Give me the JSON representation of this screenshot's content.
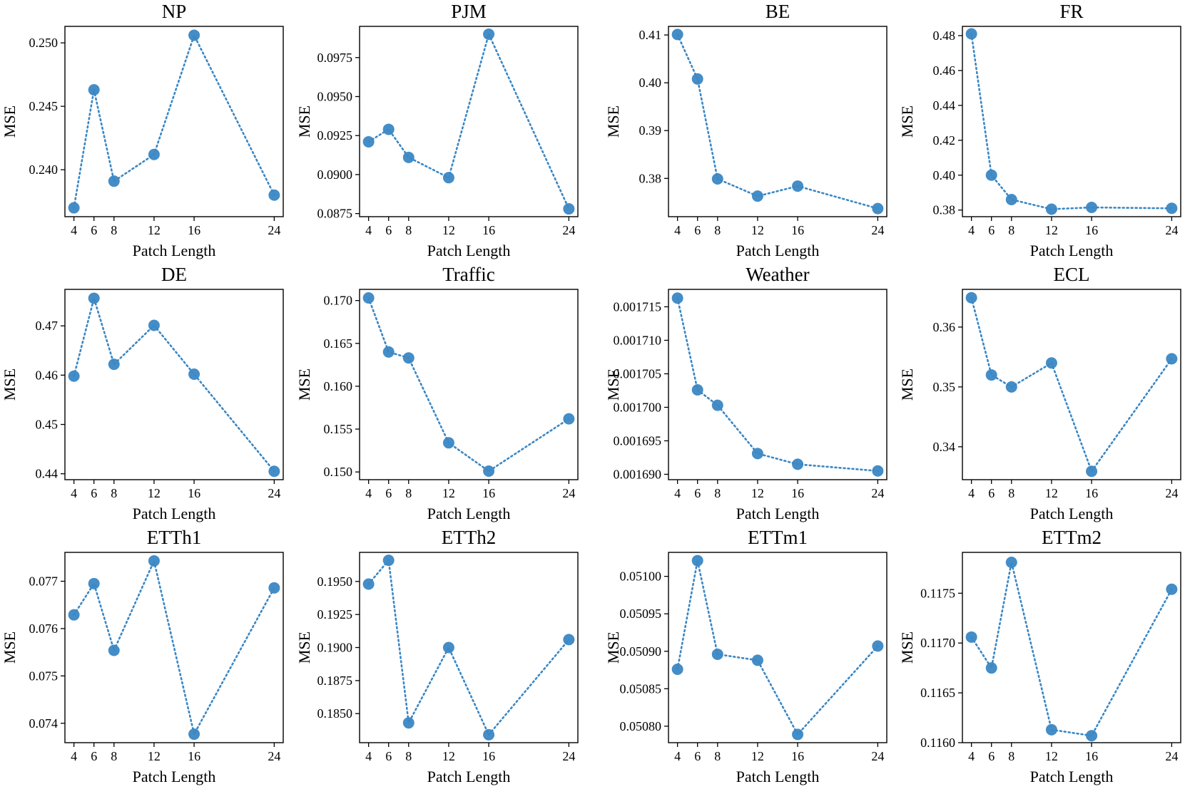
{
  "figure": {
    "marker_color": "#3a87c4",
    "line_style": "dotted"
  },
  "chart_data": [
    {
      "type": "scatter",
      "title": "NP",
      "xlabel": "Patch Length",
      "ylabel": "MSE",
      "x": [
        4,
        6,
        8,
        12,
        16,
        24
      ],
      "y": [
        0.237,
        0.2463,
        0.2391,
        0.2412,
        0.2506,
        0.238
      ],
      "xticks": [
        "4",
        "6",
        "8",
        "12",
        "16",
        "24"
      ],
      "yticks": [
        "0.240",
        "0.245",
        "0.250"
      ],
      "ylim": [
        0.2363,
        0.2513
      ]
    },
    {
      "type": "scatter",
      "title": "PJM",
      "xlabel": "Patch Length",
      "ylabel": "MSE",
      "x": [
        4,
        6,
        8,
        12,
        16,
        24
      ],
      "y": [
        0.0921,
        0.0929,
        0.0911,
        0.0898,
        0.099,
        0.0878
      ],
      "xticks": [
        "4",
        "6",
        "8",
        "12",
        "16",
        "24"
      ],
      "yticks": [
        "0.0875",
        "0.0900",
        "0.0925",
        "0.0950",
        "0.0975"
      ],
      "ylim": [
        0.0873,
        0.0995
      ]
    },
    {
      "type": "scatter",
      "title": "BE",
      "xlabel": "Patch Length",
      "ylabel": "MSE",
      "x": [
        4,
        6,
        8,
        12,
        16,
        24
      ],
      "y": [
        0.4101,
        0.4008,
        0.3799,
        0.3763,
        0.3784,
        0.3737
      ],
      "xticks": [
        "4",
        "6",
        "8",
        "12",
        "16",
        "24"
      ],
      "yticks": [
        "0.38",
        "0.39",
        "0.40",
        "0.41"
      ],
      "ylim": [
        0.372,
        0.4118
      ]
    },
    {
      "type": "scatter",
      "title": "FR",
      "xlabel": "Patch Length",
      "ylabel": "MSE",
      "x": [
        4,
        6,
        8,
        12,
        16,
        24
      ],
      "y": [
        0.481,
        0.4,
        0.386,
        0.3805,
        0.3815,
        0.381
      ],
      "xticks": [
        "4",
        "6",
        "8",
        "12",
        "16",
        "24"
      ],
      "yticks": [
        "0.38",
        "0.40",
        "0.42",
        "0.44",
        "0.46",
        "0.48"
      ],
      "ylim": [
        0.3762,
        0.4853
      ]
    },
    {
      "type": "scatter",
      "title": "DE",
      "xlabel": "Patch Length",
      "ylabel": "MSE",
      "x": [
        4,
        6,
        8,
        12,
        16,
        24
      ],
      "y": [
        0.4598,
        0.4756,
        0.4622,
        0.4701,
        0.4602,
        0.4405
      ],
      "xticks": [
        "4",
        "6",
        "8",
        "12",
        "16",
        "24"
      ],
      "yticks": [
        "0.44",
        "0.45",
        "0.46",
        "0.47"
      ],
      "ylim": [
        0.4388,
        0.4774
      ]
    },
    {
      "type": "scatter",
      "title": "Traffic",
      "xlabel": "Patch Length",
      "ylabel": "MSE",
      "x": [
        4,
        6,
        8,
        12,
        16,
        24
      ],
      "y": [
        0.1703,
        0.164,
        0.1633,
        0.1534,
        0.1501,
        0.1562
      ],
      "xticks": [
        "4",
        "6",
        "8",
        "12",
        "16",
        "24"
      ],
      "yticks": [
        "0.150",
        "0.155",
        "0.160",
        "0.165",
        "0.170"
      ],
      "ylim": [
        0.1491,
        0.1713
      ]
    },
    {
      "type": "scatter",
      "title": "Weather",
      "xlabel": "Patch Length",
      "ylabel": "MSE",
      "x": [
        4,
        6,
        8,
        12,
        16,
        24
      ],
      "y": [
        0.0017163,
        0.0017026,
        0.0017003,
        0.0016931,
        0.0016915,
        0.0016905
      ],
      "xticks": [
        "4",
        "6",
        "8",
        "12",
        "16",
        "24"
      ],
      "yticks": [
        "0.001690",
        "0.001695",
        "0.001700",
        "0.001705",
        "0.001710",
        "0.001715"
      ],
      "ylim": [
        0.0016892,
        0.0017176
      ]
    },
    {
      "type": "scatter",
      "title": "ECL",
      "xlabel": "Patch Length",
      "ylabel": "MSE",
      "x": [
        4,
        6,
        8,
        12,
        16,
        24
      ],
      "y": [
        0.3649,
        0.352,
        0.35,
        0.354,
        0.3359,
        0.3547
      ],
      "xticks": [
        "4",
        "6",
        "8",
        "12",
        "16",
        "24"
      ],
      "yticks": [
        "0.34",
        "0.35",
        "0.36"
      ],
      "ylim": [
        0.3345,
        0.3663
      ]
    },
    {
      "type": "scatter",
      "title": "ETTh1",
      "xlabel": "Patch Length",
      "ylabel": "MSE",
      "x": [
        4,
        6,
        8,
        12,
        16,
        24
      ],
      "y": [
        0.07629,
        0.07695,
        0.07554,
        0.07743,
        0.07377,
        0.07686
      ],
      "xticks": [
        "4",
        "6",
        "8",
        "12",
        "16",
        "24"
      ],
      "yticks": [
        "0.074",
        "0.075",
        "0.076",
        "0.077"
      ],
      "ylim": [
        0.07359,
        0.07761
      ]
    },
    {
      "type": "scatter",
      "title": "ETTh2",
      "xlabel": "Patch Length",
      "ylabel": "MSE",
      "x": [
        4,
        6,
        8,
        12,
        16,
        24
      ],
      "y": [
        0.1948,
        0.1966,
        0.1843,
        0.19,
        0.1834,
        0.1906
      ],
      "xticks": [
        "4",
        "6",
        "8",
        "12",
        "16",
        "24"
      ],
      "yticks": [
        "0.1850",
        "0.1875",
        "0.1900",
        "0.1925",
        "0.1950"
      ],
      "ylim": [
        0.1828,
        0.1972
      ]
    },
    {
      "type": "scatter",
      "title": "ETTm1",
      "xlabel": "Patch Length",
      "ylabel": "MSE",
      "x": [
        4,
        6,
        8,
        12,
        16,
        24
      ],
      "y": [
        0.050876,
        0.051021,
        0.050896,
        0.050888,
        0.050789,
        0.050907
      ],
      "xticks": [
        "4",
        "6",
        "8",
        "12",
        "16",
        "24"
      ],
      "yticks": [
        "0.05080",
        "0.05085",
        "0.05090",
        "0.05095",
        "0.05100"
      ],
      "ylim": [
        0.050778,
        0.051032
      ]
    },
    {
      "type": "scatter",
      "title": "ETTm2",
      "xlabel": "Patch Length",
      "ylabel": "MSE",
      "x": [
        4,
        6,
        8,
        12,
        16,
        24
      ],
      "y": [
        0.11706,
        0.11675,
        0.11781,
        0.11613,
        0.11607,
        0.11754
      ],
      "xticks": [
        "4",
        "6",
        "8",
        "12",
        "16",
        "24"
      ],
      "yticks": [
        "0.1160",
        "0.1165",
        "0.1170",
        "0.1175"
      ],
      "ylim": [
        0.116,
        0.11791
      ]
    }
  ]
}
